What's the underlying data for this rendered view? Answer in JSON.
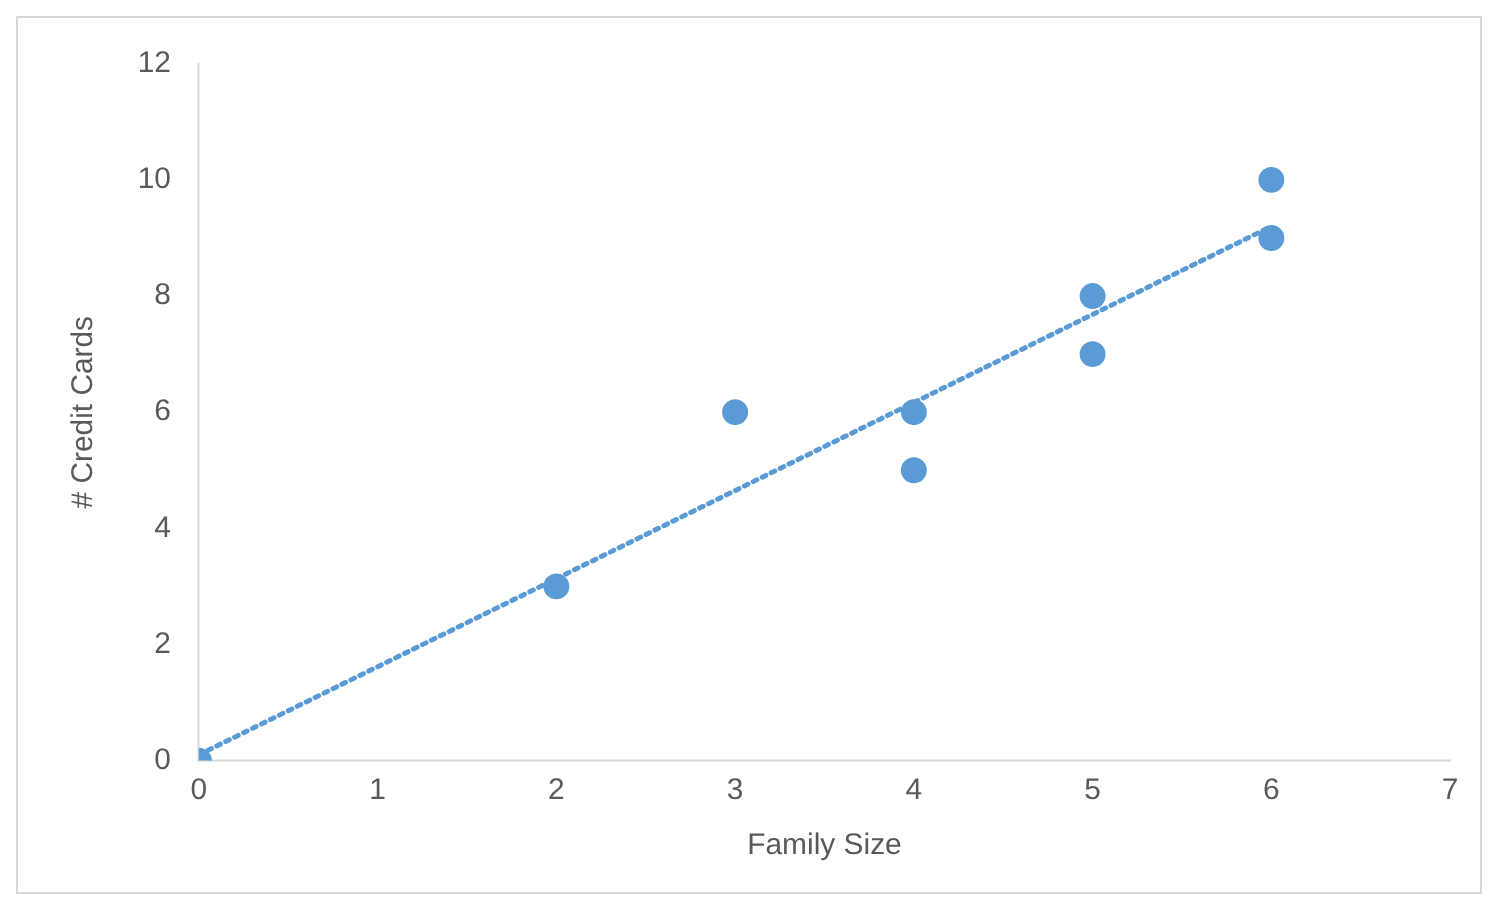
{
  "chart_data": {
    "type": "scatter",
    "xlabel": "Family Size",
    "ylabel": "# Credit Cards",
    "series": [
      {
        "type": "scatter",
        "color": "#5b9bd5",
        "x": [
          0,
          2,
          3,
          4,
          4,
          5,
          5,
          6,
          6
        ],
        "values": [
          0,
          3,
          6,
          6,
          5,
          8,
          7,
          10,
          9
        ],
        "marker": "circle"
      },
      {
        "type": "line",
        "color": "#5b9bd5",
        "x": [
          0,
          6
        ],
        "values": [
          0.1,
          9.2
        ],
        "line_style": "dotted",
        "marker": "none"
      }
    ],
    "xlim": [
      0,
      7
    ],
    "xticks": [
      0,
      1,
      2,
      3,
      4,
      5,
      6,
      7
    ],
    "ylim": [
      0,
      12
    ],
    "yticks": [
      0,
      2,
      4,
      6,
      8,
      10,
      12
    ],
    "grid": false,
    "legend": false
  }
}
